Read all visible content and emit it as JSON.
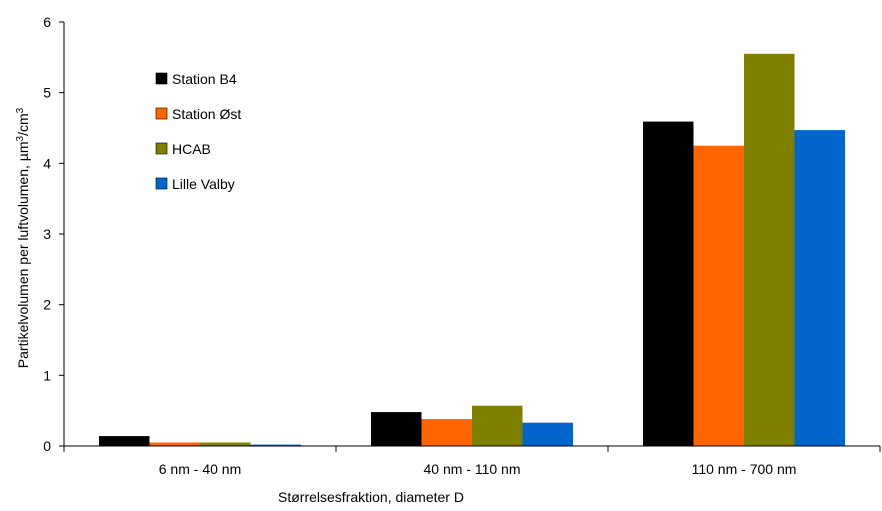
{
  "chart_data": {
    "type": "bar",
    "title": "",
    "xlabel": "Størrelsesfraktion, diameter D",
    "ylabel_main": "Partikelvolumen per luftvolumen, µm",
    "ylabel_sup1": "3",
    "ylabel_mid": "/cm",
    "ylabel_sup2": "3",
    "ylim": [
      0,
      6
    ],
    "yticks": [
      "0",
      "1",
      "2",
      "3",
      "4",
      "5",
      "6"
    ],
    "grid": false,
    "legend_placement": "top-left",
    "categories": [
      "6 nm - 40 nm",
      "40 nm - 110 nm",
      "110 nm - 700 nm"
    ],
    "series": [
      {
        "name": "Station B4",
        "color": "#000000",
        "values": [
          0.14,
          0.48,
          4.59
        ]
      },
      {
        "name": "Station Øst",
        "color": "#ff6600",
        "values": [
          0.05,
          0.38,
          4.25
        ]
      },
      {
        "name": "HCAB",
        "color": "#808000",
        "values": [
          0.05,
          0.57,
          5.55
        ]
      },
      {
        "name": "Lille Valby",
        "color": "#0066cc",
        "values": [
          0.02,
          0.33,
          4.47
        ]
      }
    ]
  }
}
